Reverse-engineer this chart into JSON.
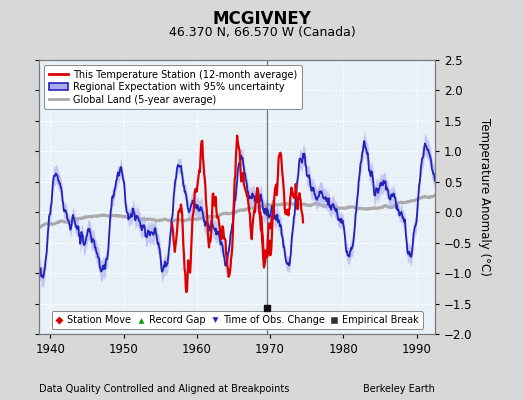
{
  "title": "MCGIVNEY",
  "subtitle": "46.370 N, 66.570 W (Canada)",
  "ylabel": "Temperature Anomaly (°C)",
  "xlabel_left": "Data Quality Controlled and Aligned at Breakpoints",
  "xlabel_right": "Berkeley Earth",
  "ylim": [
    -2.0,
    2.5
  ],
  "xlim": [
    1938.5,
    1992.5
  ],
  "yticks": [
    -2,
    -1.5,
    -1,
    -0.5,
    0,
    0.5,
    1,
    1.5,
    2,
    2.5
  ],
  "xticks": [
    1940,
    1950,
    1960,
    1970,
    1980,
    1990
  ],
  "bg_color": "#d8d8d8",
  "plot_bg_color": "#e8f0f8",
  "grid_color": "#ffffff",
  "empirical_break_year": 1969.6,
  "red_start_1": 1956.5,
  "red_end_1": 1970.5,
  "red_start_2": 1968.0,
  "red_end_2": 1974.5,
  "station_color": "#dd0000",
  "regional_color": "#2222bb",
  "regional_fill_color": "#aaaaee",
  "global_color": "#aaaaaa",
  "break_marker_y": -1.58
}
